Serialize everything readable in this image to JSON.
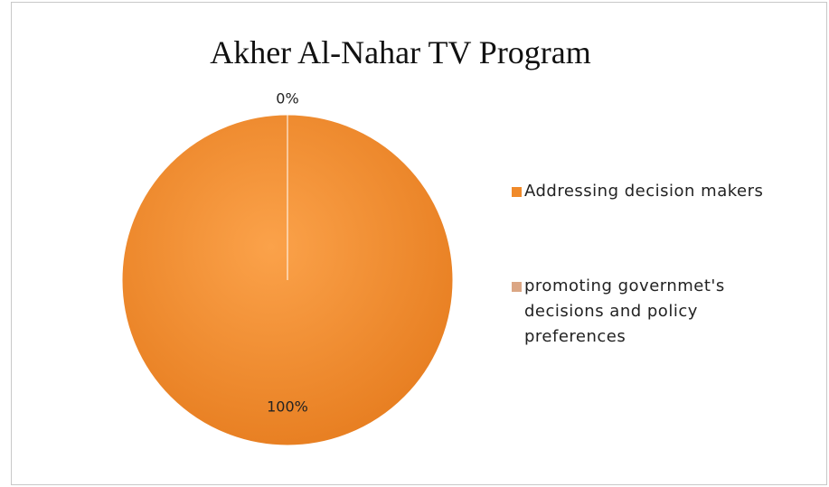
{
  "chart_data": {
    "type": "pie",
    "title": "Akher Al-Nahar TV Program",
    "categories": [
      "Addressing decision makers",
      "promoting governmet's decisions and policy preferences"
    ],
    "values": [
      100,
      0
    ],
    "value_labels": [
      "100%",
      "0%"
    ],
    "colors": [
      "#f08a2a",
      "#dba684"
    ],
    "legend": "right"
  }
}
